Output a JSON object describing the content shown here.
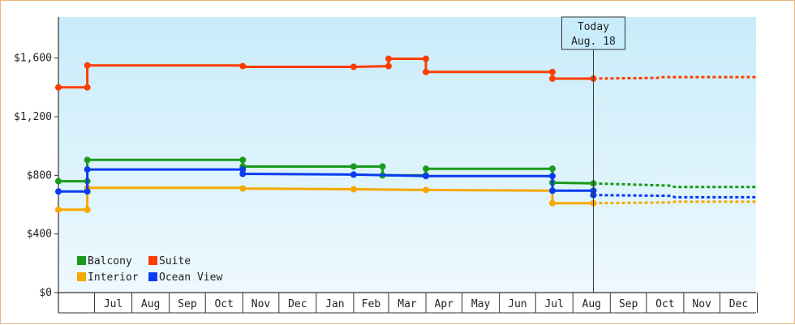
{
  "chart_data": {
    "type": "line",
    "line_style": "step",
    "y_ticks": [
      "$0",
      "$400",
      "$800",
      "$1,200",
      "$1,600"
    ],
    "ylim": [
      0,
      1880
    ],
    "x_months": [
      "Jul",
      "Aug",
      "Sep",
      "Oct",
      "Nov",
      "Dec",
      "Jan",
      "Feb",
      "Mar",
      "Apr",
      "May",
      "Jun",
      "Jul",
      "Aug",
      "Sep",
      "Oct",
      "Nov",
      "Dec"
    ],
    "x_range": [
      "2015-06-01",
      "2016-12-31"
    ],
    "today": {
      "line1": "Today",
      "line2": "Aug. 18",
      "date": "2016-08-18"
    },
    "legend_placement": "bottom-left",
    "background": {
      "top": "#c8ecfa",
      "bottom": "#eef9fe"
    },
    "series": [
      {
        "name": "Balcony",
        "color": "#1a9a1a",
        "points": [
          [
            "2015-06-01",
            760
          ],
          [
            "2015-06-25",
            760
          ],
          [
            "2015-06-25",
            905
          ],
          [
            "2015-11-01",
            905
          ],
          [
            "2015-11-01",
            860
          ],
          [
            "2016-02-01",
            860
          ],
          [
            "2016-02-25",
            860
          ],
          [
            "2016-02-25",
            800
          ],
          [
            "2016-04-01",
            800
          ],
          [
            "2016-04-01",
            845
          ],
          [
            "2016-07-15",
            845
          ],
          [
            "2016-07-15",
            750
          ],
          [
            "2016-08-18",
            745
          ]
        ],
        "markers": [
          [
            "2015-06-01",
            760
          ],
          [
            "2015-06-25",
            760
          ],
          [
            "2015-06-25",
            905
          ],
          [
            "2015-11-01",
            905
          ],
          [
            "2015-11-01",
            860
          ],
          [
            "2016-02-01",
            860
          ],
          [
            "2016-02-25",
            860
          ],
          [
            "2016-02-25",
            800
          ],
          [
            "2016-04-01",
            800
          ],
          [
            "2016-04-01",
            845
          ],
          [
            "2016-07-15",
            845
          ],
          [
            "2016-07-15",
            750
          ],
          [
            "2016-08-18",
            745
          ]
        ],
        "forecast": [
          [
            "2016-08-18",
            745
          ],
          [
            "2016-10-20",
            730
          ],
          [
            "2016-10-25",
            720
          ],
          [
            "2016-12-31",
            720
          ]
        ]
      },
      {
        "name": "Suite",
        "color": "#ff3d00",
        "points": [
          [
            "2015-06-01",
            1400
          ],
          [
            "2015-06-25",
            1400
          ],
          [
            "2015-06-25",
            1550
          ],
          [
            "2015-11-01",
            1550
          ],
          [
            "2015-11-01",
            1540
          ],
          [
            "2016-02-01",
            1540
          ],
          [
            "2016-03-01",
            1545
          ],
          [
            "2016-03-01",
            1595
          ],
          [
            "2016-04-01",
            1595
          ],
          [
            "2016-04-01",
            1505
          ],
          [
            "2016-07-15",
            1505
          ],
          [
            "2016-07-15",
            1460
          ],
          [
            "2016-08-18",
            1460
          ]
        ],
        "markers": [
          [
            "2015-06-01",
            1400
          ],
          [
            "2015-06-25",
            1400
          ],
          [
            "2015-06-25",
            1550
          ],
          [
            "2015-11-01",
            1545
          ],
          [
            "2016-02-01",
            1540
          ],
          [
            "2016-03-01",
            1545
          ],
          [
            "2016-03-01",
            1595
          ],
          [
            "2016-04-01",
            1595
          ],
          [
            "2016-04-01",
            1505
          ],
          [
            "2016-07-15",
            1505
          ],
          [
            "2016-07-15",
            1460
          ],
          [
            "2016-08-18",
            1460
          ]
        ],
        "forecast": [
          [
            "2016-08-18",
            1460
          ],
          [
            "2016-10-10",
            1465
          ],
          [
            "2016-10-15",
            1470
          ],
          [
            "2016-12-31",
            1470
          ]
        ]
      },
      {
        "name": "Interior",
        "color": "#f5a800",
        "points": [
          [
            "2015-06-01",
            565
          ],
          [
            "2015-06-25",
            565
          ],
          [
            "2015-06-25",
            715
          ],
          [
            "2015-11-01",
            715
          ],
          [
            "2015-11-01",
            710
          ],
          [
            "2016-02-01",
            705
          ],
          [
            "2016-04-01",
            700
          ],
          [
            "2016-07-15",
            695
          ],
          [
            "2016-07-15",
            610
          ],
          [
            "2016-08-18",
            610
          ]
        ],
        "markers": [
          [
            "2015-06-01",
            565
          ],
          [
            "2015-06-25",
            565
          ],
          [
            "2015-06-25",
            715
          ],
          [
            "2015-11-01",
            710
          ],
          [
            "2016-02-01",
            705
          ],
          [
            "2016-04-01",
            700
          ],
          [
            "2016-07-15",
            610
          ],
          [
            "2016-08-18",
            610
          ]
        ],
        "forecast": [
          [
            "2016-08-18",
            610
          ],
          [
            "2016-10-20",
            615
          ],
          [
            "2016-10-25",
            620
          ],
          [
            "2016-12-31",
            620
          ]
        ]
      },
      {
        "name": "Ocean View",
        "color": "#0a3cf0",
        "points": [
          [
            "2015-06-01",
            690
          ],
          [
            "2015-06-25",
            690
          ],
          [
            "2015-06-25",
            840
          ],
          [
            "2015-11-01",
            840
          ],
          [
            "2015-11-01",
            810
          ],
          [
            "2016-02-01",
            805
          ],
          [
            "2016-04-01",
            795
          ],
          [
            "2016-07-15",
            795
          ],
          [
            "2016-07-15",
            695
          ],
          [
            "2016-08-18",
            695
          ],
          [
            "2016-08-18",
            665
          ]
        ],
        "markers": [
          [
            "2015-06-01",
            690
          ],
          [
            "2015-06-25",
            690
          ],
          [
            "2015-06-25",
            840
          ],
          [
            "2015-11-01",
            840
          ],
          [
            "2015-11-01",
            810
          ],
          [
            "2016-02-01",
            805
          ],
          [
            "2016-04-01",
            795
          ],
          [
            "2016-07-15",
            795
          ],
          [
            "2016-07-15",
            695
          ],
          [
            "2016-08-18",
            695
          ],
          [
            "2016-08-18",
            665
          ]
        ],
        "forecast": [
          [
            "2016-08-18",
            665
          ],
          [
            "2016-10-20",
            660
          ],
          [
            "2016-10-25",
            650
          ],
          [
            "2016-12-31",
            650
          ]
        ]
      }
    ]
  }
}
